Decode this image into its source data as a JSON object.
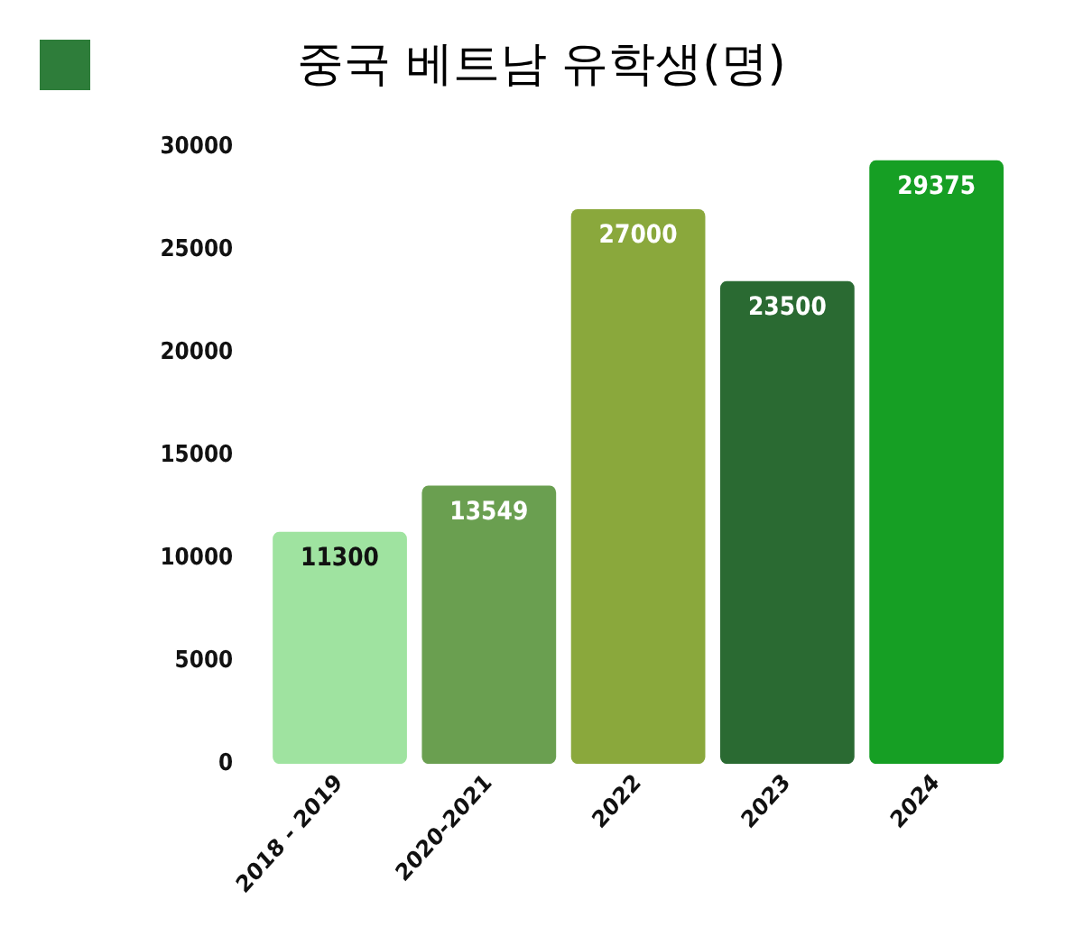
{
  "chart_data": {
    "type": "bar",
    "title": "중국 베트남 유학생(명)",
    "categories": [
      "2018 - 2019",
      "2020-2021",
      "2022",
      "2023",
      "2024"
    ],
    "values": [
      11300,
      13549,
      27000,
      23500,
      29375
    ],
    "colors": [
      "#9fe3a0",
      "#6a9f50",
      "#8aa83c",
      "#2a6a32",
      "#169f24"
    ],
    "ylim": [
      0,
      30000
    ],
    "yticks": [
      0,
      5000,
      10000,
      15000,
      20000,
      25000,
      30000
    ],
    "grid": false,
    "data_labels": true
  }
}
